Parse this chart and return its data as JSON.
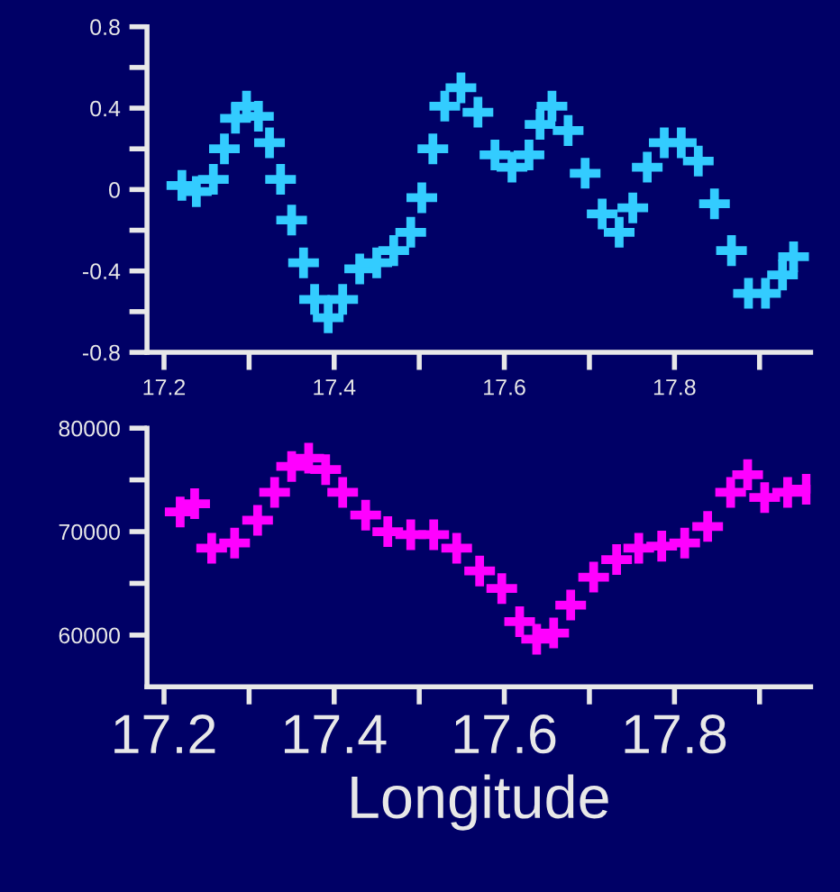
{
  "chart_data": [
    {
      "type": "scatter",
      "marker": "cross",
      "grid": false,
      "legend": false,
      "xlim": [
        17.18,
        17.96
      ],
      "ylim": [
        -0.8,
        0.8
      ],
      "xticks": [
        17.2,
        {
          "value": 17.3,
          "label": null
        },
        17.4,
        {
          "value": 17.5,
          "label": null
        },
        17.6,
        {
          "value": 17.7,
          "label": null
        },
        17.8,
        {
          "value": 17.9,
          "label": null
        }
      ],
      "yticks": [
        {
          "value": -0.8,
          "label": "-0.8"
        },
        {
          "value": -0.6,
          "label": null
        },
        {
          "value": -0.4,
          "label": "-0.4"
        },
        {
          "value": -0.2,
          "label": null
        },
        0,
        {
          "value": 0.2,
          "label": null
        },
        0.4,
        {
          "value": 0.6,
          "label": null
        },
        0.8
      ],
      "x": [
        17.221,
        17.238,
        17.258,
        17.271,
        17.284,
        17.297,
        17.311,
        17.324,
        17.337,
        17.35,
        17.364,
        17.377,
        17.393,
        17.41,
        17.43,
        17.45,
        17.47,
        17.49,
        17.503,
        17.516,
        17.53,
        17.549,
        17.569,
        17.589,
        17.609,
        17.629,
        17.642,
        17.656,
        17.675,
        17.695,
        17.715,
        17.735,
        17.751,
        17.768,
        17.788,
        17.808,
        17.828,
        17.847,
        17.867,
        17.887,
        17.907,
        17.927,
        17.94
      ],
      "series": [
        {
          "color": "#33ccff",
          "values": [
            0.02,
            -0.01,
            0.05,
            0.2,
            0.35,
            0.41,
            0.36,
            0.23,
            0.05,
            -0.15,
            -0.36,
            -0.54,
            -0.63,
            -0.54,
            -0.39,
            -0.36,
            -0.3,
            -0.21,
            -0.04,
            0.2,
            0.41,
            0.5,
            0.38,
            0.17,
            0.11,
            0.17,
            0.32,
            0.41,
            0.29,
            0.08,
            -0.12,
            -0.21,
            -0.09,
            0.11,
            0.23,
            0.23,
            0.14,
            -0.07,
            -0.3,
            -0.51,
            -0.51,
            -0.42,
            -0.33
          ]
        }
      ]
    },
    {
      "type": "scatter",
      "marker": "cross",
      "grid": false,
      "legend": false,
      "xlabel": "Longitude",
      "xlim": [
        17.18,
        17.96
      ],
      "ylim": [
        55000,
        80000
      ],
      "xticks": [
        17.2,
        {
          "value": 17.3,
          "label": null
        },
        17.4,
        {
          "value": 17.5,
          "label": null
        },
        17.6,
        {
          "value": 17.7,
          "label": null
        },
        17.8,
        {
          "value": 17.9,
          "label": null
        }
      ],
      "yticks": [
        60000,
        {
          "value": 65000,
          "label": null
        },
        70000,
        {
          "value": 75000,
          "label": null
        },
        80000
      ],
      "x": [
        17.219,
        17.236,
        17.256,
        17.283,
        17.31,
        17.33,
        17.35,
        17.37,
        17.39,
        17.41,
        17.437,
        17.463,
        17.49,
        17.517,
        17.544,
        17.571,
        17.597,
        17.618,
        17.638,
        17.658,
        17.678,
        17.705,
        17.732,
        17.758,
        17.785,
        17.812,
        17.839,
        17.866,
        17.886,
        17.906,
        17.933,
        17.955
      ],
      "series": [
        {
          "color": "#ff00ff",
          "values": [
            71900,
            72700,
            68400,
            68900,
            71100,
            73800,
            76300,
            77100,
            76000,
            73800,
            71600,
            70000,
            69700,
            69700,
            68400,
            66200,
            64500,
            61300,
            59600,
            60200,
            62900,
            65600,
            67300,
            68400,
            68600,
            68900,
            70500,
            73800,
            75500,
            73300,
            73800,
            74100
          ]
        }
      ]
    }
  ]
}
